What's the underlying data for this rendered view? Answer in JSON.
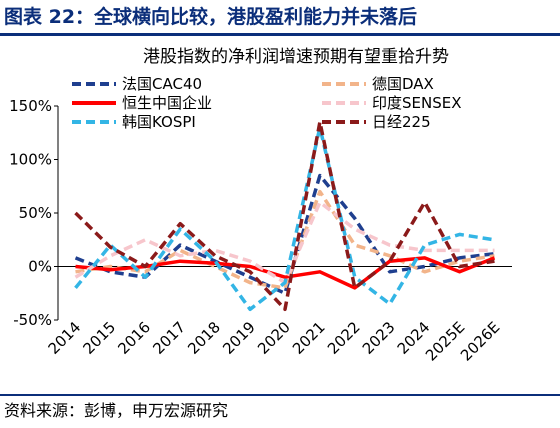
{
  "figure": {
    "title": "图表 22：全球横向比较，港股盈利能力并未落后",
    "source": "资料来源：彭博，申万宏源研究"
  },
  "chart_data": {
    "type": "line",
    "title": "港股指数的净利润增速预期有望重拾升势",
    "categories": [
      "2014",
      "2015",
      "2016",
      "2017",
      "2018",
      "2019",
      "2020",
      "2021",
      "2022",
      "2023",
      "2024",
      "2025E",
      "2026E"
    ],
    "ylim": [
      -50,
      150
    ],
    "yticks": [
      "-50%",
      "0%",
      "50%",
      "100%",
      "150%"
    ],
    "ytick_values": [
      -50,
      0,
      50,
      100,
      150
    ],
    "grid": false,
    "legend_position": "top",
    "series": [
      {
        "name": "法国CAC40",
        "color": "#1f3f8f",
        "dash": "dash",
        "values": [
          8,
          -5,
          -10,
          20,
          5,
          -10,
          -25,
          85,
          45,
          -5,
          0,
          8,
          12
        ]
      },
      {
        "name": "德国DAX",
        "color": "#f2b48a",
        "dash": "dash",
        "values": [
          -5,
          0,
          -5,
          15,
          0,
          -15,
          -20,
          70,
          20,
          10,
          -5,
          5,
          10
        ]
      },
      {
        "name": "恒生中国企业",
        "color": "#ff0000",
        "dash": "solid",
        "values": [
          0,
          -3,
          0,
          5,
          3,
          0,
          -10,
          -5,
          -20,
          5,
          8,
          -5,
          8
        ]
      },
      {
        "name": "印度SENSEX",
        "color": "#f7c6cc",
        "dash": "dash",
        "values": [
          -10,
          10,
          25,
          10,
          15,
          5,
          -15,
          60,
          35,
          20,
          15,
          15,
          15
        ]
      },
      {
        "name": "韩国KOSPI",
        "color": "#33b5e5",
        "dash": "dash",
        "values": [
          -20,
          20,
          -10,
          35,
          5,
          -40,
          -15,
          130,
          -10,
          -35,
          20,
          30,
          25
        ]
      },
      {
        "name": "日经225",
        "color": "#8b1a1a",
        "dash": "dash",
        "values": [
          50,
          18,
          0,
          40,
          10,
          -5,
          -40,
          135,
          -20,
          5,
          60,
          0,
          5
        ]
      }
    ]
  }
}
